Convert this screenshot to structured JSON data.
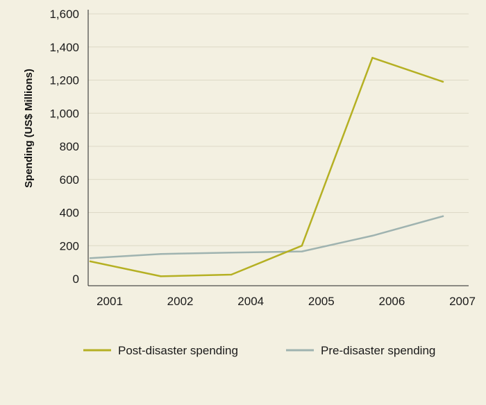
{
  "chart_data": {
    "type": "line",
    "categories": [
      "2001",
      "2002",
      "2004",
      "2005",
      "2006",
      "2007"
    ],
    "series": [
      {
        "name": "Post-disaster spending",
        "color": "#b5b023",
        "values": [
          105,
          15,
          25,
          200,
          1335,
          1190
        ]
      },
      {
        "name": "Pre-disaster spending",
        "color": "#9fb3b0",
        "values": [
          125,
          150,
          158,
          165,
          260,
          378
        ]
      }
    ],
    "ylabel": "Spending (US$ Millions)",
    "xlabel": "",
    "title": "",
    "ylim": [
      0,
      1600
    ],
    "yticks": [
      0,
      200,
      400,
      600,
      800,
      1000,
      1200,
      1400,
      1600
    ],
    "ytick_labels": [
      "0",
      "200",
      "400",
      "600",
      "800",
      "1,000",
      "1,200",
      "1,400",
      "1,600"
    ],
    "grid": "horizontal",
    "legend_position": "bottom"
  }
}
